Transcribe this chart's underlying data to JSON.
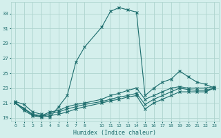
{
  "xlabel": "Humidex (Indice chaleur)",
  "bg_color": "#d4efec",
  "line_color": "#1a6b6b",
  "grid_color": "#aed4cf",
  "xlim": [
    -0.5,
    23.5
  ],
  "ylim": [
    18.5,
    34.5
  ],
  "yticks": [
    19,
    21,
    23,
    25,
    27,
    29,
    31,
    33
  ],
  "xticks": [
    0,
    1,
    2,
    3,
    4,
    5,
    6,
    7,
    8,
    10,
    11,
    12,
    13,
    14,
    15,
    16,
    17,
    18,
    19,
    20,
    21,
    22,
    23
  ],
  "xtick_labels": [
    "0",
    "1",
    "2",
    "3",
    "4",
    "5",
    "6",
    "7",
    "8",
    "10",
    "11",
    "12",
    "13",
    "14",
    "15",
    "16",
    "17",
    "18",
    "19",
    "20",
    "21",
    "22",
    "23"
  ],
  "s1_x": [
    0,
    1,
    2,
    3,
    4,
    5,
    6,
    7,
    8,
    10,
    11,
    12,
    13,
    14,
    15,
    16,
    17,
    18,
    19,
    20,
    21,
    22,
    23
  ],
  "s1_y": [
    21.2,
    20.8,
    19.8,
    19.5,
    19.1,
    20.5,
    22.0,
    26.5,
    28.5,
    31.2,
    33.3,
    33.8,
    33.5,
    33.2,
    22.0,
    23.0,
    23.8,
    24.2,
    25.3,
    24.5,
    23.8,
    23.5,
    23.0
  ],
  "s2_x": [
    0,
    1,
    2,
    3,
    4,
    5,
    6,
    7,
    8,
    10,
    11,
    12,
    13,
    14,
    15,
    16,
    17,
    18,
    19,
    20,
    21,
    22,
    23
  ],
  "s2_y": [
    21.0,
    20.3,
    19.5,
    19.3,
    19.8,
    20.0,
    20.5,
    20.8,
    21.0,
    21.5,
    22.0,
    22.3,
    22.7,
    23.0,
    21.5,
    22.0,
    22.5,
    23.0,
    23.2,
    23.0,
    23.0,
    23.0,
    23.2
  ],
  "s3_x": [
    0,
    1,
    2,
    3,
    4,
    5,
    6,
    7,
    8,
    10,
    11,
    12,
    13,
    14,
    15,
    16,
    17,
    18,
    19,
    20,
    21,
    22,
    23
  ],
  "s3_y": [
    21.0,
    20.2,
    19.4,
    19.2,
    19.6,
    19.8,
    20.2,
    20.5,
    20.8,
    21.2,
    21.5,
    21.8,
    22.0,
    22.3,
    20.8,
    21.5,
    22.0,
    22.5,
    23.0,
    22.8,
    22.7,
    22.7,
    23.0
  ],
  "s4_x": [
    0,
    1,
    2,
    3,
    4,
    5,
    6,
    7,
    8,
    10,
    11,
    12,
    13,
    14,
    15,
    16,
    17,
    18,
    19,
    20,
    21,
    22,
    23
  ],
  "s4_y": [
    21.0,
    20.0,
    19.3,
    19.1,
    19.3,
    19.5,
    19.8,
    20.2,
    20.5,
    21.0,
    21.3,
    21.5,
    21.8,
    22.0,
    20.2,
    21.0,
    21.5,
    22.0,
    22.5,
    22.5,
    22.5,
    22.5,
    23.0
  ]
}
